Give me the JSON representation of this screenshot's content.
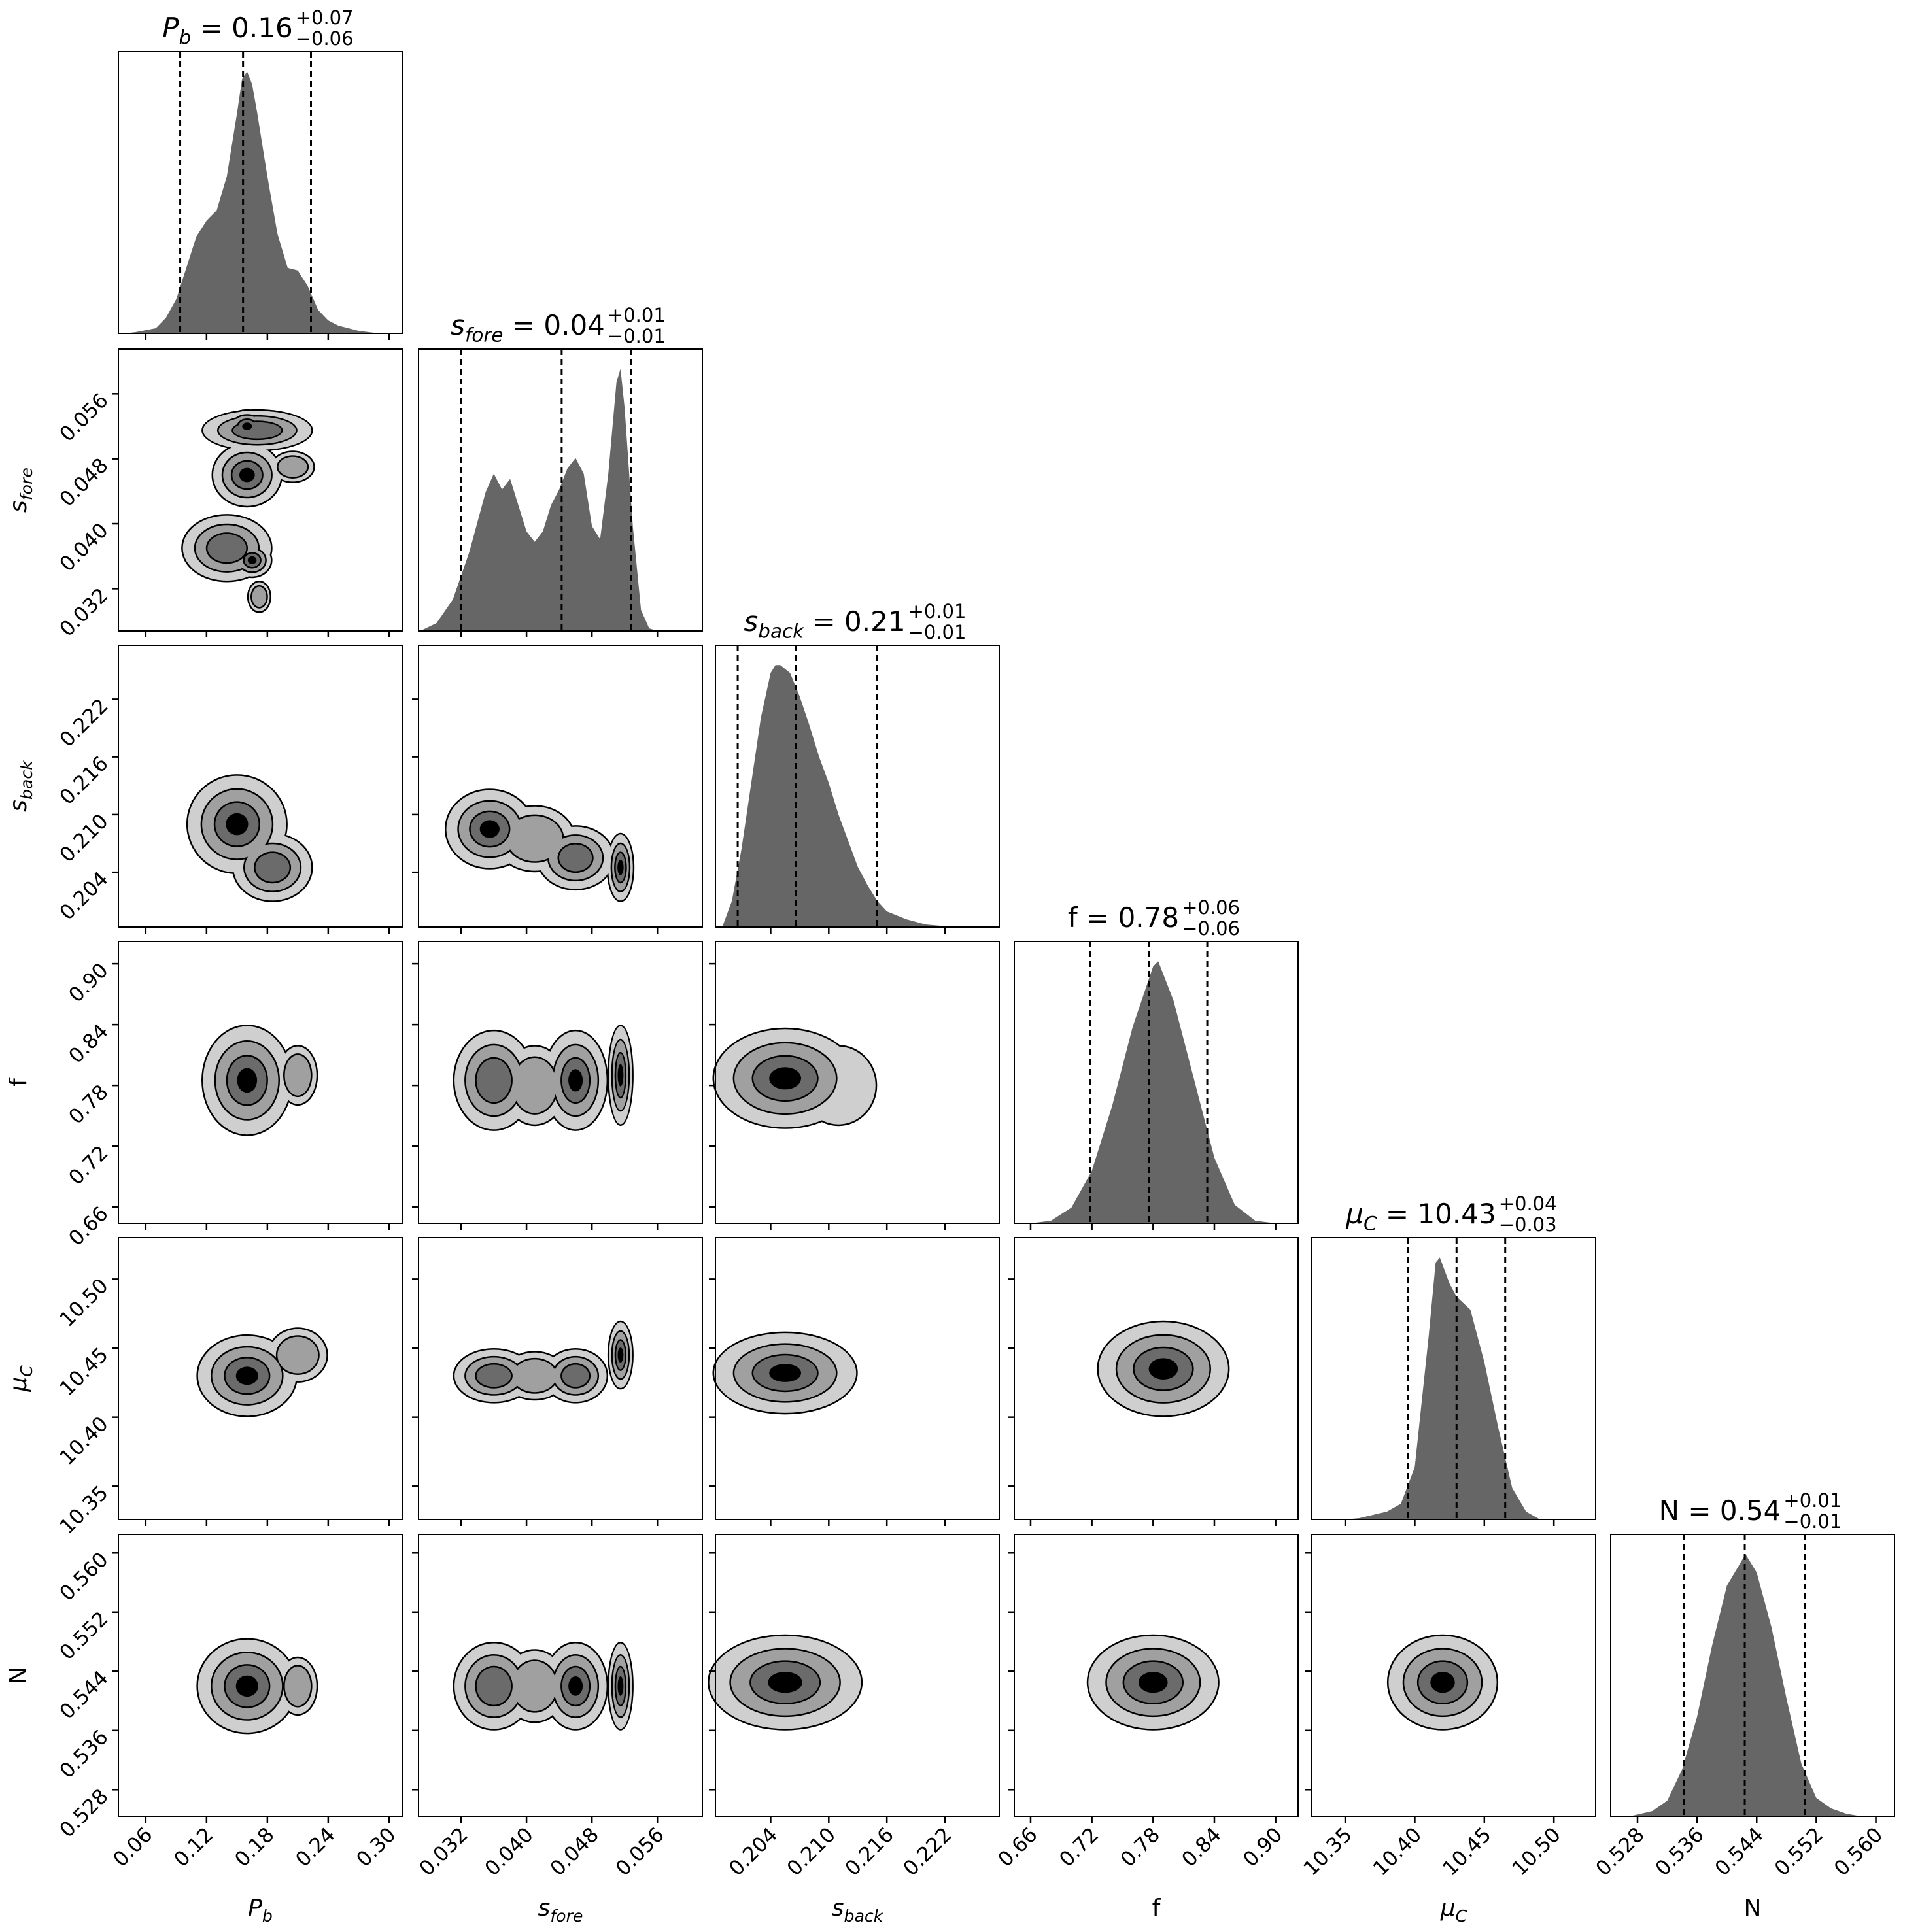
{
  "chart_data": {
    "type": "corner",
    "params": [
      {
        "label_base": "P",
        "label_sub": "b",
        "italic": true,
        "value": "0.16",
        "plus": "+0.07",
        "minus": "−0.06",
        "range": [
          0.033,
          0.313
        ],
        "ticks": [
          0.06,
          0.12,
          0.18,
          0.24,
          0.3
        ],
        "tick_labels": [
          "0.06",
          "0.12",
          "0.18",
          "0.24",
          "0.30"
        ],
        "quantiles": [
          0.094,
          0.156,
          0.223
        ],
        "density": [
          [
            0.04,
            0
          ],
          [
            0.05,
            0.005
          ],
          [
            0.07,
            0.02
          ],
          [
            0.08,
            0.06
          ],
          [
            0.09,
            0.13
          ],
          [
            0.1,
            0.25
          ],
          [
            0.11,
            0.37
          ],
          [
            0.12,
            0.43
          ],
          [
            0.13,
            0.47
          ],
          [
            0.14,
            0.6
          ],
          [
            0.15,
            0.84
          ],
          [
            0.155,
            0.97
          ],
          [
            0.16,
            1.0
          ],
          [
            0.165,
            0.95
          ],
          [
            0.17,
            0.84
          ],
          [
            0.18,
            0.6
          ],
          [
            0.19,
            0.38
          ],
          [
            0.2,
            0.25
          ],
          [
            0.21,
            0.24
          ],
          [
            0.22,
            0.18
          ],
          [
            0.23,
            0.09
          ],
          [
            0.24,
            0.05
          ],
          [
            0.25,
            0.03
          ],
          [
            0.27,
            0.01
          ],
          [
            0.29,
            0.0
          ]
        ]
      },
      {
        "label_base": "s",
        "label_sub": "fore",
        "italic": true,
        "value": "0.04",
        "plus": "+0.01",
        "minus": "−0.01",
        "range": [
          0.0268,
          0.0615
        ],
        "ticks": [
          0.032,
          0.04,
          0.048,
          0.056
        ],
        "tick_labels": [
          "0.032",
          "0.040",
          "0.048",
          "0.056"
        ],
        "quantiles": [
          0.032,
          0.0443,
          0.0528
        ],
        "density": [
          [
            0.027,
            0
          ],
          [
            0.029,
            0.03
          ],
          [
            0.031,
            0.12
          ],
          [
            0.033,
            0.3
          ],
          [
            0.035,
            0.53
          ],
          [
            0.036,
            0.6
          ],
          [
            0.037,
            0.54
          ],
          [
            0.038,
            0.58
          ],
          [
            0.039,
            0.48
          ],
          [
            0.04,
            0.38
          ],
          [
            0.041,
            0.34
          ],
          [
            0.042,
            0.38
          ],
          [
            0.043,
            0.48
          ],
          [
            0.044,
            0.54
          ],
          [
            0.045,
            0.62
          ],
          [
            0.046,
            0.66
          ],
          [
            0.047,
            0.6
          ],
          [
            0.048,
            0.4
          ],
          [
            0.049,
            0.35
          ],
          [
            0.05,
            0.6
          ],
          [
            0.051,
            0.95
          ],
          [
            0.0515,
            1.0
          ],
          [
            0.052,
            0.85
          ],
          [
            0.053,
            0.4
          ],
          [
            0.054,
            0.08
          ],
          [
            0.055,
            0.01
          ],
          [
            0.056,
            0
          ]
        ]
      },
      {
        "label_base": "s",
        "label_sub": "back",
        "italic": true,
        "value": "0.21",
        "plus": "+0.01",
        "minus": "−0.01",
        "range": [
          0.1983,
          0.2276
        ],
        "ticks": [
          0.204,
          0.21,
          0.216,
          0.222
        ],
        "tick_labels": [
          "0.204",
          "0.210",
          "0.216",
          "0.222"
        ],
        "quantiles": [
          0.2006,
          0.2066,
          0.215
        ],
        "density": [
          [
            0.199,
            0
          ],
          [
            0.2,
            0.1
          ],
          [
            0.201,
            0.3
          ],
          [
            0.202,
            0.55
          ],
          [
            0.203,
            0.8
          ],
          [
            0.204,
            0.97
          ],
          [
            0.2045,
            1.0
          ],
          [
            0.205,
            1.0
          ],
          [
            0.206,
            0.97
          ],
          [
            0.207,
            0.88
          ],
          [
            0.208,
            0.77
          ],
          [
            0.209,
            0.65
          ],
          [
            0.21,
            0.55
          ],
          [
            0.211,
            0.43
          ],
          [
            0.212,
            0.33
          ],
          [
            0.213,
            0.23
          ],
          [
            0.214,
            0.16
          ],
          [
            0.215,
            0.1
          ],
          [
            0.216,
            0.06
          ],
          [
            0.218,
            0.03
          ],
          [
            0.22,
            0.01
          ],
          [
            0.223,
            0
          ]
        ]
      },
      {
        "label_base": "f",
        "label_sub": "",
        "italic": false,
        "value": "0.78",
        "plus": "+0.06",
        "minus": "−0.06",
        "range": [
          0.644,
          0.922
        ],
        "ticks": [
          0.66,
          0.72,
          0.78,
          0.84,
          0.9
        ],
        "tick_labels": [
          "0.66",
          "0.72",
          "0.78",
          "0.84",
          "0.90"
        ],
        "quantiles": [
          0.718,
          0.776,
          0.833
        ],
        "density": [
          [
            0.66,
            0
          ],
          [
            0.68,
            0.01
          ],
          [
            0.7,
            0.06
          ],
          [
            0.72,
            0.2
          ],
          [
            0.74,
            0.45
          ],
          [
            0.76,
            0.75
          ],
          [
            0.78,
            0.98
          ],
          [
            0.785,
            1.0
          ],
          [
            0.8,
            0.85
          ],
          [
            0.82,
            0.55
          ],
          [
            0.84,
            0.25
          ],
          [
            0.86,
            0.07
          ],
          [
            0.88,
            0.01
          ],
          [
            0.9,
            0
          ]
        ]
      },
      {
        "label_base": "μ",
        "label_sub": "C",
        "italic": true,
        "value": "10.43",
        "plus": "+0.04",
        "minus": "−0.03",
        "range": [
          10.326,
          10.53
        ],
        "ticks": [
          10.35,
          10.4,
          10.45,
          10.5
        ],
        "tick_labels": [
          "10.35",
          "10.40",
          "10.45",
          "10.50"
        ],
        "quantiles": [
          10.395,
          10.43,
          10.465
        ],
        "density": [
          [
            10.35,
            0
          ],
          [
            10.36,
            0.005
          ],
          [
            10.38,
            0.03
          ],
          [
            10.39,
            0.06
          ],
          [
            10.4,
            0.2
          ],
          [
            10.41,
            0.7
          ],
          [
            10.415,
            0.98
          ],
          [
            10.418,
            1.0
          ],
          [
            10.425,
            0.9
          ],
          [
            10.43,
            0.85
          ],
          [
            10.44,
            0.8
          ],
          [
            10.45,
            0.6
          ],
          [
            10.46,
            0.35
          ],
          [
            10.47,
            0.12
          ],
          [
            10.48,
            0.03
          ],
          [
            10.49,
            0
          ]
        ]
      },
      {
        "label_base": "N",
        "label_sub": "",
        "italic": false,
        "value": "0.54",
        "plus": "+0.01",
        "minus": "−0.01",
        "range": [
          0.5244,
          0.5625
        ],
        "ticks": [
          0.528,
          0.536,
          0.544,
          0.552,
          0.56
        ],
        "tick_labels": [
          "0.528",
          "0.536",
          "0.544",
          "0.552",
          "0.560"
        ],
        "quantiles": [
          0.5342,
          0.5424,
          0.5505
        ],
        "density": [
          [
            0.527,
            0
          ],
          [
            0.53,
            0.02
          ],
          [
            0.532,
            0.06
          ],
          [
            0.534,
            0.18
          ],
          [
            0.536,
            0.38
          ],
          [
            0.538,
            0.65
          ],
          [
            0.54,
            0.88
          ],
          [
            0.5425,
            1.0
          ],
          [
            0.544,
            0.93
          ],
          [
            0.546,
            0.72
          ],
          [
            0.548,
            0.45
          ],
          [
            0.55,
            0.2
          ],
          [
            0.552,
            0.07
          ],
          [
            0.554,
            0.03
          ],
          [
            0.556,
            0.01
          ],
          [
            0.558,
            0
          ]
        ]
      }
    ],
    "contour_levels_colors": [
      "#cfcfcf",
      "#a0a0a0",
      "#6b6b6b",
      "#000000"
    ],
    "hist_color": "#666666",
    "pairs": [
      {
        "x": 0,
        "y": 1,
        "blobs": [
          [
            0.17,
            0.0515,
            0.055,
            0.0026,
            3
          ],
          [
            0.16,
            0.052,
            0.022,
            0.0021,
            4
          ],
          [
            0.16,
            0.046,
            0.035,
            0.004,
            4
          ],
          [
            0.14,
            0.037,
            0.045,
            0.0042,
            3
          ],
          [
            0.165,
            0.0355,
            0.02,
            0.0022,
            4
          ],
          [
            0.205,
            0.047,
            0.022,
            0.002,
            2
          ],
          [
            0.172,
            0.031,
            0.012,
            0.002,
            2
          ]
        ]
      },
      {
        "x": 0,
        "y": 2,
        "blobs": [
          [
            0.15,
            0.209,
            0.05,
            0.0052,
            4
          ],
          [
            0.185,
            0.2045,
            0.04,
            0.0036,
            3
          ]
        ]
      },
      {
        "x": 1,
        "y": 2,
        "blobs": [
          [
            0.0355,
            0.2085,
            0.0055,
            0.0042,
            4
          ],
          [
            0.041,
            0.2075,
            0.005,
            0.0035,
            2
          ],
          [
            0.046,
            0.2055,
            0.0048,
            0.0034,
            3
          ],
          [
            0.0515,
            0.2045,
            0.0017,
            0.0036,
            4
          ]
        ]
      },
      {
        "x": 0,
        "y": 3,
        "blobs": [
          [
            0.16,
            0.785,
            0.045,
            0.055,
            4
          ],
          [
            0.21,
            0.79,
            0.02,
            0.03,
            2
          ]
        ]
      },
      {
        "x": 1,
        "y": 3,
        "blobs": [
          [
            0.036,
            0.785,
            0.005,
            0.05,
            3
          ],
          [
            0.041,
            0.78,
            0.004,
            0.04,
            2
          ],
          [
            0.046,
            0.785,
            0.004,
            0.05,
            4
          ],
          [
            0.0515,
            0.79,
            0.0016,
            0.05,
            4
          ]
        ]
      },
      {
        "x": 2,
        "y": 3,
        "blobs": [
          [
            0.2055,
            0.787,
            0.0075,
            0.05,
            4
          ],
          [
            0.211,
            0.78,
            0.004,
            0.04,
            1
          ]
        ]
      },
      {
        "x": 0,
        "y": 4,
        "blobs": [
          [
            0.16,
            10.43,
            0.05,
            0.03,
            4
          ],
          [
            0.21,
            10.445,
            0.03,
            0.02,
            2
          ]
        ]
      },
      {
        "x": 1,
        "y": 4,
        "blobs": [
          [
            0.036,
            10.43,
            0.005,
            0.02,
            3
          ],
          [
            0.041,
            10.43,
            0.004,
            0.018,
            2
          ],
          [
            0.046,
            10.43,
            0.004,
            0.02,
            3
          ],
          [
            0.0515,
            10.445,
            0.0016,
            0.025,
            4
          ]
        ]
      },
      {
        "x": 2,
        "y": 4,
        "blobs": [
          [
            0.2055,
            10.432,
            0.0075,
            0.03,
            4
          ]
        ]
      },
      {
        "x": 3,
        "y": 4,
        "blobs": [
          [
            0.79,
            10.435,
            0.065,
            0.035,
            4
          ]
        ]
      },
      {
        "x": 0,
        "y": 5,
        "blobs": [
          [
            0.16,
            0.542,
            0.05,
            0.0065,
            4
          ],
          [
            0.21,
            0.542,
            0.02,
            0.004,
            2
          ]
        ]
      },
      {
        "x": 1,
        "y": 5,
        "blobs": [
          [
            0.036,
            0.542,
            0.005,
            0.006,
            3
          ],
          [
            0.041,
            0.542,
            0.004,
            0.005,
            2
          ],
          [
            0.046,
            0.542,
            0.004,
            0.006,
            4
          ],
          [
            0.0515,
            0.542,
            0.0016,
            0.006,
            4
          ]
        ]
      },
      {
        "x": 2,
        "y": 5,
        "blobs": [
          [
            0.2055,
            0.5425,
            0.008,
            0.0065,
            4
          ]
        ]
      },
      {
        "x": 3,
        "y": 5,
        "blobs": [
          [
            0.78,
            0.5425,
            0.065,
            0.0065,
            4
          ]
        ]
      },
      {
        "x": 4,
        "y": 5,
        "blobs": [
          [
            10.42,
            0.5425,
            0.04,
            0.0065,
            4
          ]
        ]
      }
    ]
  }
}
